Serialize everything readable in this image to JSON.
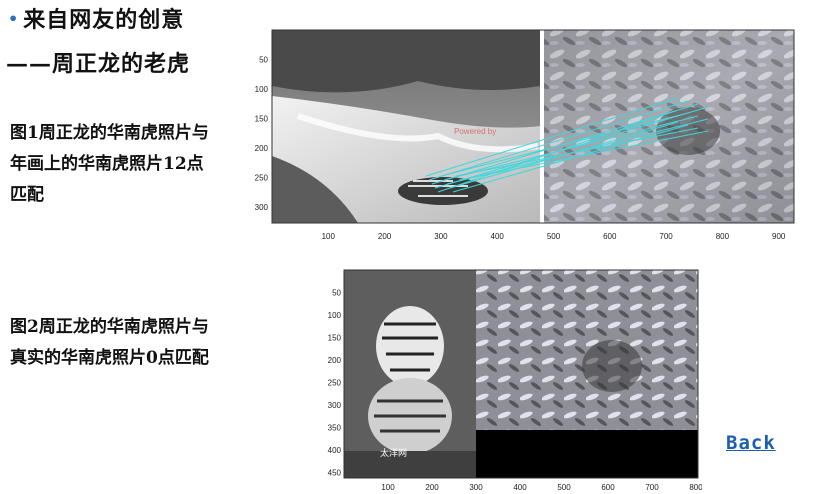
{
  "slide": {
    "title_line1": "来自网友的创意",
    "title_line2": "——周正龙的老虎",
    "bullet_color": "#2a6fb8",
    "caption1": "图1周正龙的华南虎照片与年画上的华南虎照片12点匹配",
    "caption2": "图2周正龙的华南虎照片与真实的华南虎照片0点匹配",
    "back_label": "Back",
    "link_color": "#1c5fb0"
  },
  "figure1": {
    "y_ticks": [
      "50",
      "100",
      "150",
      "200",
      "250",
      "300"
    ],
    "x_ticks": [
      "100",
      "200",
      "300",
      "400",
      "500",
      "600",
      "700",
      "800",
      "900"
    ],
    "left_image": "waterfall-tiger-photo",
    "right_image": "tiger-in-foliage-photo",
    "watermark": "Powered by",
    "match_line_color": "#3fd7dc"
  },
  "figure2": {
    "y_ticks": [
      "50",
      "100",
      "150",
      "200",
      "250",
      "300",
      "350",
      "400",
      "450"
    ],
    "x_ticks": [
      "100",
      "200",
      "300",
      "400",
      "500",
      "600",
      "700",
      "800"
    ],
    "left_image": "tiger-portrait-photo",
    "right_image": "tiger-in-foliage-photo",
    "logo_text": "太洋网"
  }
}
